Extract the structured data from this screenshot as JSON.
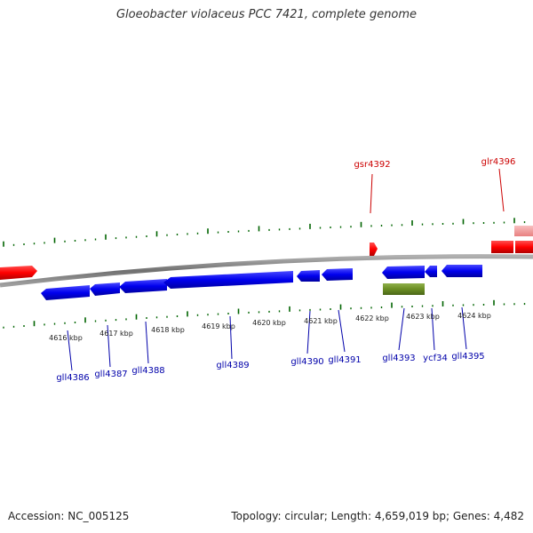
{
  "title": "Gloeobacter violaceus PCC 7421, complete genome",
  "accession": "Accession: NC_005125",
  "topology": "Topology: circular; Length: 4,659,019 bp; Genes: 4,482",
  "colors": {
    "forward_gene": "#ff0000",
    "reverse_gene": "#0000ff",
    "rna_gene": "#6b8e23",
    "pseudo_gene": "#f4a0a0",
    "tick": "#006400",
    "backbone": "#808080",
    "forward_label": "#cc0000",
    "reverse_label": "#0000aa"
  },
  "scale_labels": [
    "4616 kbp",
    "4617 kbp",
    "4618 kbp",
    "4619 kbp",
    "4620 kbp",
    "4621 kbp",
    "4622 kbp",
    "4623 kbp",
    "4624 kbp"
  ],
  "forward_labels": [
    "gsr4392",
    "glr4396"
  ],
  "reverse_labels": [
    "gll4386",
    "gll4387",
    "gll4388",
    "gll4389",
    "gll4390",
    "gll4391",
    "gll4393",
    "ycf34",
    "gll4395"
  ]
}
